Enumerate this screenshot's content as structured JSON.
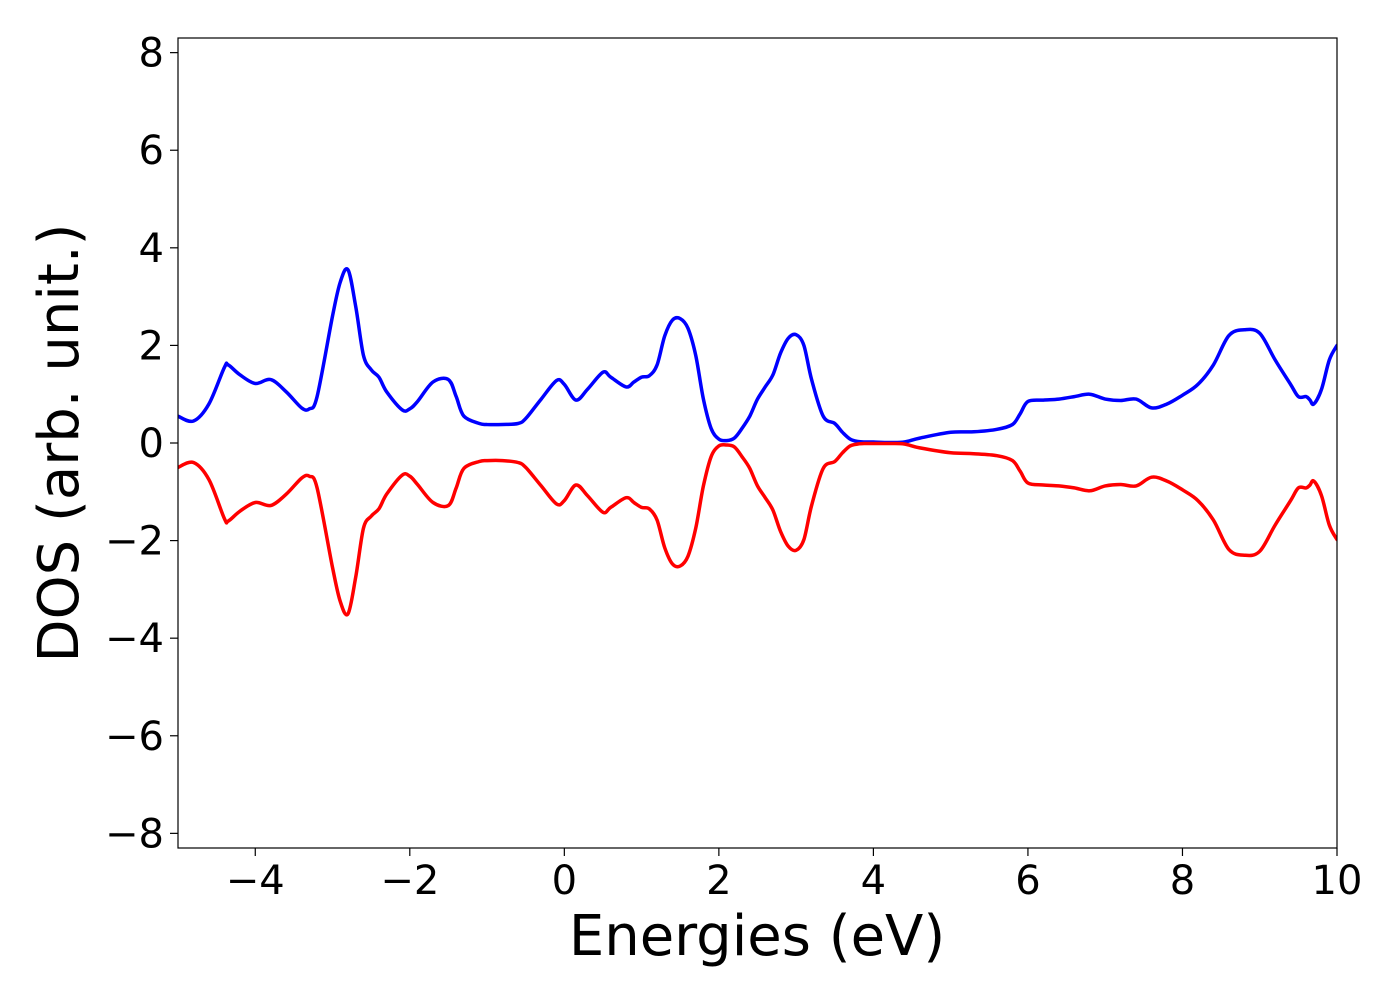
{
  "chart_data": {
    "type": "line",
    "xlabel": "Energies (eV)",
    "ylabel": "DOS (arb. unit.)",
    "xlim": [
      -5,
      10
    ],
    "ylim": [
      -8.3,
      8.3
    ],
    "xticks": [
      -4,
      -2,
      0,
      2,
      4,
      6,
      8,
      10
    ],
    "xtick_labels": [
      "−4",
      "−2",
      "0",
      "2",
      "4",
      "6",
      "8",
      "10"
    ],
    "yticks": [
      -8,
      -6,
      -4,
      -2,
      0,
      2,
      4,
      6,
      8
    ],
    "ytick_labels": [
      "−8",
      "−6",
      "−4",
      "−2",
      "0",
      "2",
      "4",
      "6",
      "8"
    ],
    "grid": false,
    "legend": "none",
    "series": [
      {
        "color": "#0000ff",
        "x": [
          -5.0,
          -4.8,
          -4.6,
          -4.4,
          -4.35,
          -4.2,
          -4.0,
          -3.8,
          -3.6,
          -3.4,
          -3.3,
          -3.2,
          -3.0,
          -2.9,
          -2.8,
          -2.7,
          -2.6,
          -2.5,
          -2.4,
          -2.3,
          -2.1,
          -2.0,
          -1.9,
          -1.7,
          -1.5,
          -1.4,
          -1.3,
          -1.1,
          -1.0,
          -0.8,
          -0.6,
          -0.5,
          -0.3,
          -0.1,
          0.0,
          0.15,
          0.3,
          0.5,
          0.6,
          0.8,
          0.9,
          1.0,
          1.1,
          1.2,
          1.3,
          1.4,
          1.5,
          1.6,
          1.7,
          1.8,
          1.9,
          2.0,
          2.1,
          2.2,
          2.3,
          2.4,
          2.5,
          2.6,
          2.7,
          2.8,
          2.9,
          3.0,
          3.1,
          3.2,
          3.35,
          3.5,
          3.6,
          3.7,
          3.8,
          3.9,
          4.0,
          4.2,
          4.4,
          4.6,
          5.0,
          5.3,
          5.6,
          5.8,
          5.9,
          6.0,
          6.2,
          6.4,
          6.6,
          6.8,
          7.0,
          7.2,
          7.4,
          7.6,
          7.8,
          8.0,
          8.2,
          8.4,
          8.6,
          8.8,
          9.0,
          9.2,
          9.4,
          9.5,
          9.6,
          9.65,
          9.7,
          9.8,
          9.9,
          10.0
        ],
        "values": [
          0.55,
          0.45,
          0.8,
          1.55,
          1.6,
          1.4,
          1.22,
          1.3,
          1.05,
          0.72,
          0.7,
          0.95,
          2.6,
          3.3,
          3.55,
          2.8,
          1.8,
          1.5,
          1.35,
          1.05,
          0.68,
          0.7,
          0.85,
          1.25,
          1.3,
          0.95,
          0.55,
          0.4,
          0.38,
          0.38,
          0.4,
          0.5,
          0.9,
          1.28,
          1.2,
          0.88,
          1.1,
          1.45,
          1.35,
          1.15,
          1.25,
          1.35,
          1.38,
          1.6,
          2.2,
          2.52,
          2.55,
          2.35,
          1.8,
          0.9,
          0.3,
          0.08,
          0.05,
          0.1,
          0.3,
          0.55,
          0.9,
          1.15,
          1.4,
          1.85,
          2.15,
          2.22,
          2.0,
          1.3,
          0.55,
          0.4,
          0.22,
          0.08,
          0.03,
          0.02,
          0.02,
          0.01,
          0.02,
          0.1,
          0.22,
          0.23,
          0.28,
          0.38,
          0.6,
          0.85,
          0.88,
          0.9,
          0.95,
          1.0,
          0.9,
          0.87,
          0.9,
          0.72,
          0.8,
          0.98,
          1.2,
          1.6,
          2.2,
          2.32,
          2.25,
          1.7,
          1.2,
          0.95,
          0.95,
          0.88,
          0.8,
          1.1,
          1.7,
          2.0
        ],
        "name": ""
      },
      {
        "color": "#ff0000",
        "x": [
          -5.0,
          -4.8,
          -4.6,
          -4.4,
          -4.35,
          -4.2,
          -4.0,
          -3.8,
          -3.6,
          -3.4,
          -3.3,
          -3.2,
          -3.0,
          -2.9,
          -2.8,
          -2.7,
          -2.6,
          -2.5,
          -2.4,
          -2.3,
          -2.1,
          -2.0,
          -1.9,
          -1.7,
          -1.5,
          -1.4,
          -1.3,
          -1.1,
          -1.0,
          -0.8,
          -0.6,
          -0.5,
          -0.3,
          -0.1,
          0.0,
          0.15,
          0.3,
          0.5,
          0.6,
          0.8,
          0.9,
          1.0,
          1.1,
          1.2,
          1.3,
          1.4,
          1.5,
          1.6,
          1.7,
          1.8,
          1.9,
          2.0,
          2.1,
          2.2,
          2.3,
          2.4,
          2.5,
          2.6,
          2.7,
          2.8,
          2.9,
          3.0,
          3.1,
          3.2,
          3.35,
          3.5,
          3.6,
          3.7,
          3.8,
          3.9,
          4.0,
          4.2,
          4.4,
          4.6,
          5.0,
          5.3,
          5.6,
          5.8,
          5.9,
          6.0,
          6.2,
          6.4,
          6.6,
          6.8,
          7.0,
          7.2,
          7.4,
          7.6,
          7.8,
          8.0,
          8.2,
          8.4,
          8.6,
          8.8,
          9.0,
          9.2,
          9.4,
          9.5,
          9.6,
          9.65,
          9.7,
          9.8,
          9.9,
          10.0
        ],
        "values": [
          -0.5,
          -0.4,
          -0.75,
          -1.55,
          -1.6,
          -1.4,
          -1.22,
          -1.28,
          -1.05,
          -0.72,
          -0.68,
          -0.92,
          -2.55,
          -3.25,
          -3.5,
          -2.75,
          -1.75,
          -1.5,
          -1.35,
          -1.05,
          -0.66,
          -0.68,
          -0.85,
          -1.22,
          -1.28,
          -0.92,
          -0.52,
          -0.38,
          -0.36,
          -0.36,
          -0.4,
          -0.5,
          -0.88,
          -1.25,
          -1.18,
          -0.86,
          -1.08,
          -1.42,
          -1.32,
          -1.12,
          -1.22,
          -1.32,
          -1.35,
          -1.58,
          -2.15,
          -2.48,
          -2.52,
          -2.32,
          -1.75,
          -0.88,
          -0.28,
          -0.06,
          -0.04,
          -0.08,
          -0.28,
          -0.52,
          -0.88,
          -1.12,
          -1.38,
          -1.82,
          -2.12,
          -2.2,
          -1.98,
          -1.28,
          -0.52,
          -0.38,
          -0.2,
          -0.06,
          -0.02,
          -0.01,
          -0.01,
          -0.01,
          -0.02,
          -0.1,
          -0.2,
          -0.22,
          -0.26,
          -0.36,
          -0.58,
          -0.82,
          -0.86,
          -0.88,
          -0.92,
          -0.98,
          -0.88,
          -0.85,
          -0.88,
          -0.7,
          -0.78,
          -0.96,
          -1.18,
          -1.58,
          -2.18,
          -2.3,
          -2.22,
          -1.68,
          -1.18,
          -0.92,
          -0.92,
          -0.86,
          -0.78,
          -1.08,
          -1.68,
          -1.98
        ],
        "name": ""
      }
    ]
  }
}
